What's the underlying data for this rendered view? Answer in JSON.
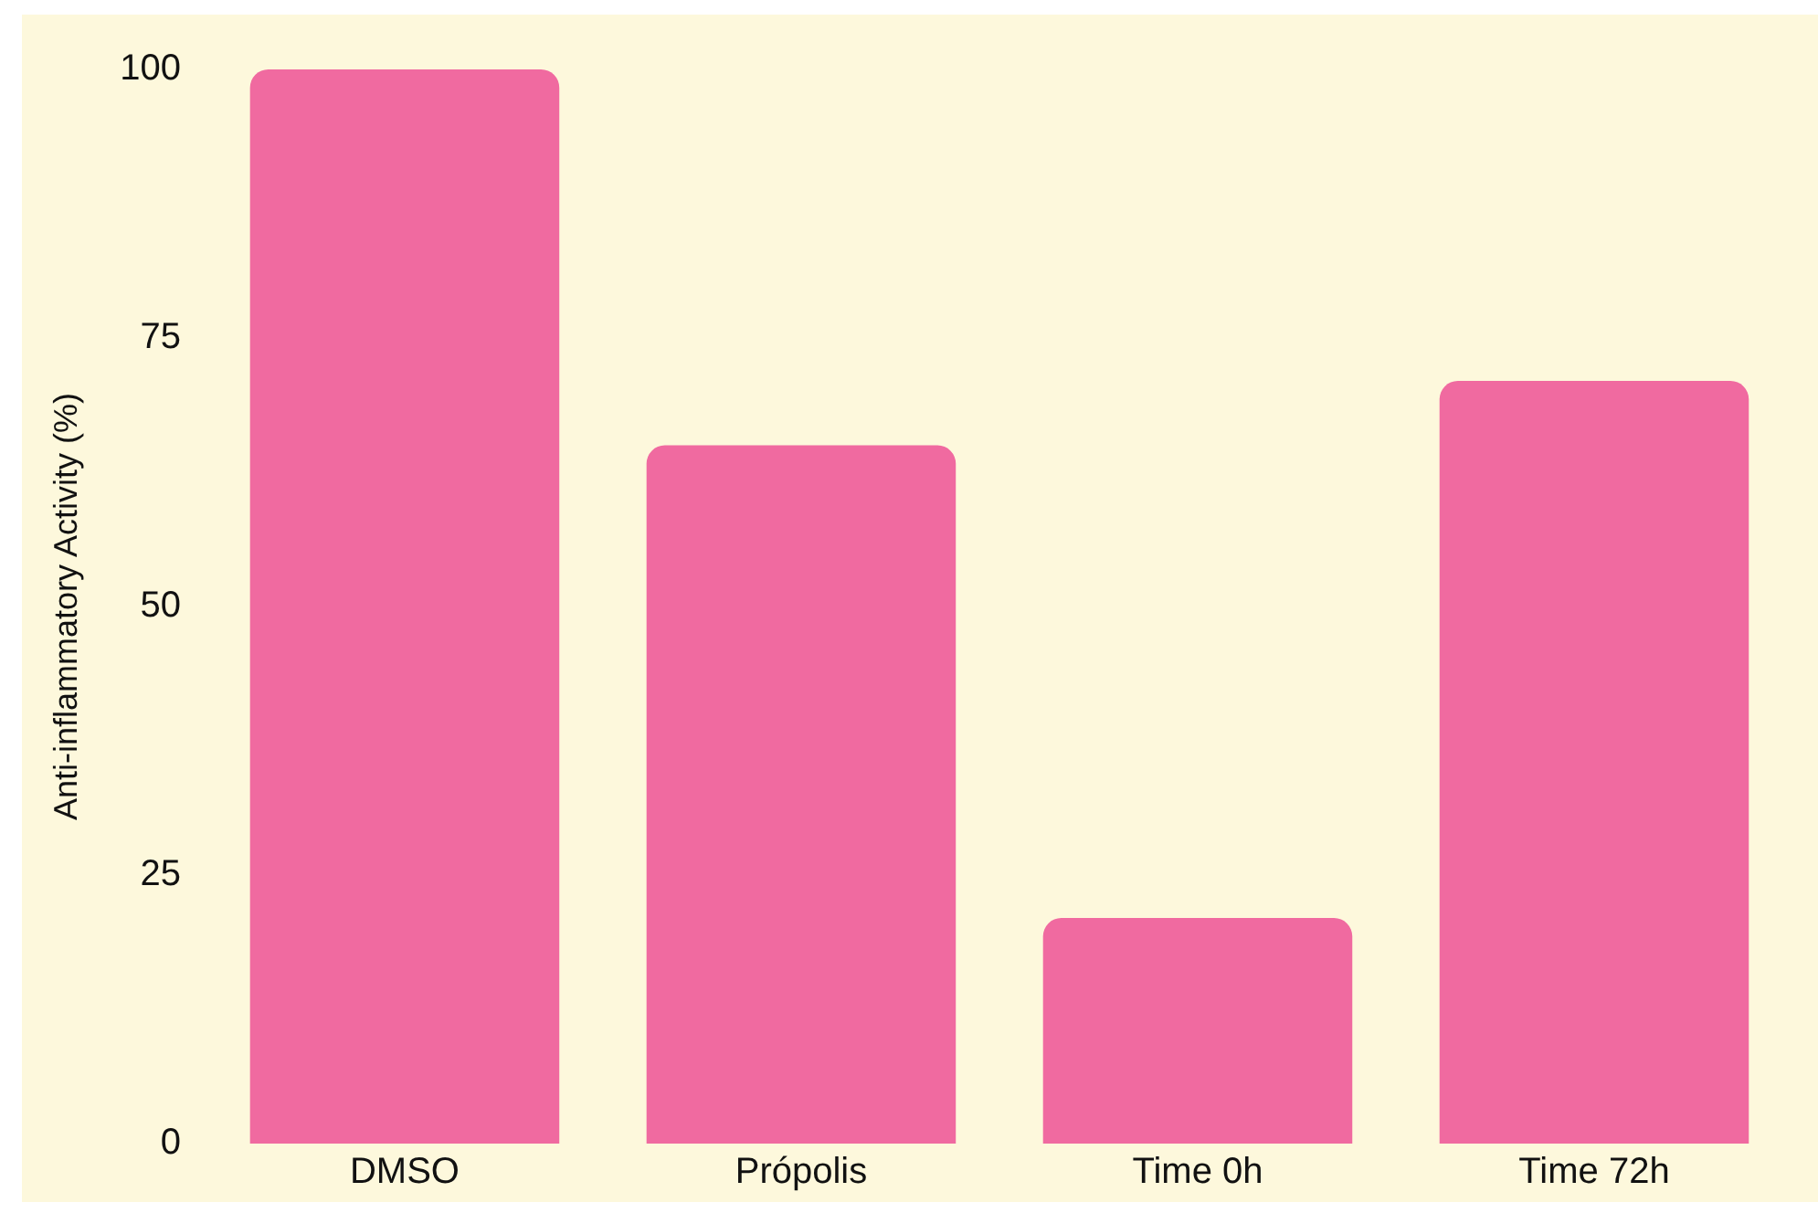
{
  "chart_data": {
    "type": "bar",
    "ylabel": "Anti-inflammatory Activity (%)",
    "categories": [
      "DMSO",
      "Própolis",
      "Time 0h",
      "Time 72h"
    ],
    "values": [
      100,
      65,
      21,
      71
    ],
    "color": "#f06aa0",
    "ylim": [
      0,
      100
    ],
    "yticks": [
      0,
      25,
      50,
      75,
      100
    ],
    "grid": false,
    "legend": false
  }
}
